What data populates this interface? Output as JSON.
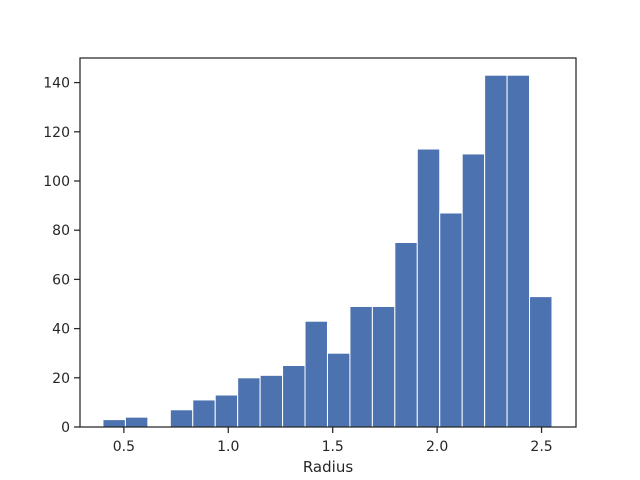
{
  "chart_data": {
    "type": "bar",
    "title": "",
    "xlabel": "Radius",
    "ylabel": "",
    "bin_width": 0.1075,
    "bin_starts": [
      0.4,
      0.5075,
      0.615,
      0.7225,
      0.83,
      0.9375,
      1.045,
      1.1525,
      1.26,
      1.3675,
      1.475,
      1.5825,
      1.69,
      1.7975,
      1.905,
      2.0125,
      2.12,
      2.2275,
      2.335,
      2.4425
    ],
    "values": [
      3,
      4,
      0,
      7,
      11,
      13,
      20,
      21,
      25,
      43,
      30,
      49,
      49,
      75,
      113,
      87,
      111,
      143,
      143,
      53
    ],
    "xlim": [
      0.29,
      2.665
    ],
    "ylim": [
      0,
      150
    ],
    "x_ticks": [
      0.5,
      1.0,
      1.5,
      2.0,
      2.5
    ],
    "x_tick_labels": [
      "0.5",
      "1.0",
      "1.5",
      "2.0",
      "2.5"
    ],
    "y_ticks": [
      0,
      20,
      40,
      60,
      80,
      100,
      120,
      140
    ],
    "y_tick_labels": [
      "0",
      "20",
      "40",
      "60",
      "80",
      "100",
      "120",
      "140"
    ],
    "grid": false,
    "colors": {
      "bar": "#4c72b0",
      "bar_edge": "#ffffff",
      "axis": "#262626"
    }
  }
}
